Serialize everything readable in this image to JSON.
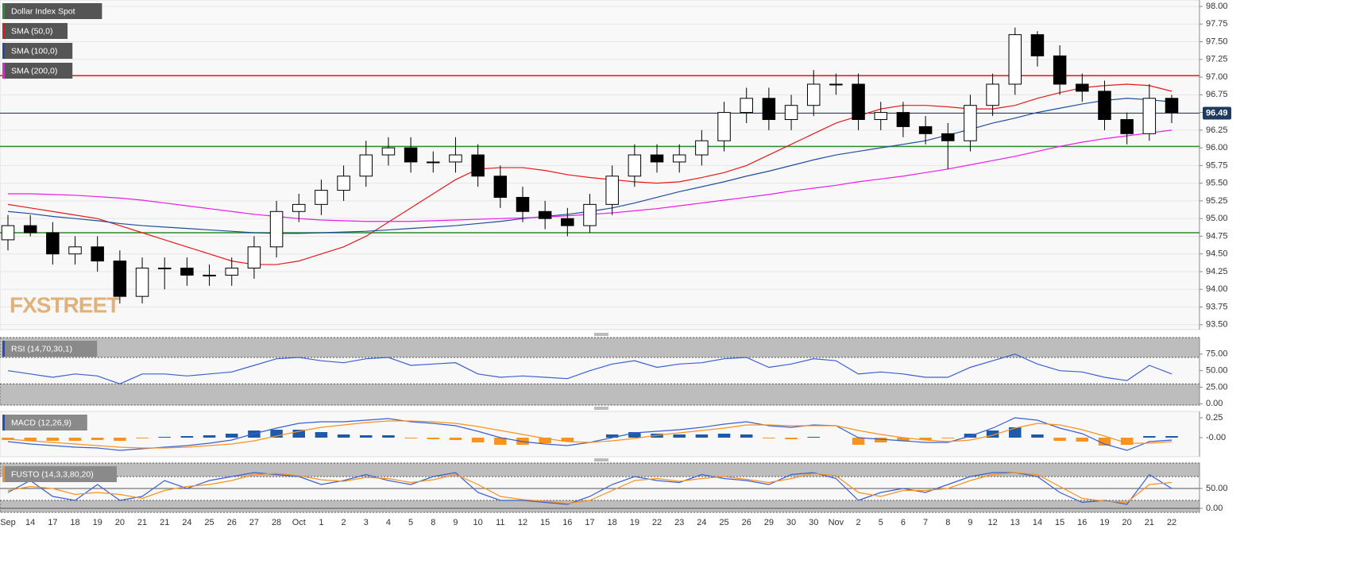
{
  "chart_data": [
    {
      "type": "candlestick",
      "legend": [
        "Dollar Index Spot",
        "SMA (50,0)",
        "SMA (100,0)",
        "SMA (200,0)"
      ],
      "legend_colors": [
        "#2e8b2e",
        "#e31a1c",
        "#1f4e9c",
        "#e81ce8"
      ],
      "watermark": "FXSTREET",
      "categories": [
        "Sep",
        "14",
        "17",
        "18",
        "19",
        "20",
        "21",
        "21",
        "24",
        "25",
        "26",
        "27",
        "28",
        "Oct",
        "1",
        "2",
        "3",
        "4",
        "5",
        "8",
        "9",
        "10",
        "11",
        "12",
        "15",
        "16",
        "17",
        "18",
        "19",
        "22",
        "23",
        "24",
        "25",
        "26",
        "29",
        "30",
        "30",
        "Nov",
        "2",
        "5",
        "6",
        "7",
        "8",
        "9",
        "12",
        "13",
        "14",
        "15",
        "16",
        "19",
        "20",
        "21",
        "22"
      ],
      "open": [
        94.7,
        94.9,
        94.8,
        94.5,
        94.6,
        94.4,
        93.9,
        94.3,
        94.3,
        94.2,
        94.2,
        94.3,
        94.6,
        95.1,
        95.2,
        95.4,
        95.6,
        95.9,
        96.0,
        95.8,
        95.8,
        95.9,
        95.6,
        95.3,
        95.1,
        95.0,
        94.9,
        95.2,
        95.6,
        95.9,
        95.8,
        95.9,
        96.1,
        96.5,
        96.7,
        96.4,
        96.6,
        96.9,
        96.9,
        96.4,
        96.5,
        96.3,
        96.2,
        96.1,
        96.6,
        96.9,
        97.6,
        97.3,
        96.9,
        96.8,
        96.4,
        96.2,
        96.7
      ],
      "high": [
        95.05,
        95.05,
        94.95,
        94.75,
        94.75,
        94.55,
        94.45,
        94.45,
        94.45,
        94.35,
        94.45,
        94.75,
        95.25,
        95.35,
        95.55,
        95.75,
        96.1,
        96.15,
        96.15,
        95.95,
        96.15,
        96.05,
        95.75,
        95.45,
        95.25,
        95.15,
        95.35,
        95.75,
        96.05,
        96.05,
        96.05,
        96.25,
        96.65,
        96.85,
        96.85,
        96.75,
        97.1,
        97.05,
        97.05,
        96.65,
        96.65,
        96.45,
        96.35,
        96.75,
        97.05,
        97.7,
        97.65,
        97.45,
        97.05,
        96.95,
        96.5,
        96.9,
        96.75
      ],
      "low": [
        94.55,
        94.75,
        94.35,
        94.35,
        94.25,
        93.8,
        93.8,
        94.0,
        94.05,
        94.05,
        94.05,
        94.15,
        94.45,
        94.95,
        95.05,
        95.25,
        95.45,
        95.75,
        95.65,
        95.65,
        95.65,
        95.45,
        95.15,
        94.95,
        94.85,
        94.75,
        94.8,
        95.05,
        95.45,
        95.65,
        95.65,
        95.75,
        95.95,
        96.35,
        96.25,
        96.25,
        96.45,
        96.75,
        96.25,
        96.25,
        96.15,
        96.05,
        95.7,
        95.95,
        96.45,
        96.75,
        97.15,
        96.75,
        96.65,
        96.25,
        96.05,
        96.1,
        96.35
      ],
      "close": [
        94.9,
        94.8,
        94.5,
        94.6,
        94.4,
        93.9,
        94.3,
        94.3,
        94.2,
        94.2,
        94.3,
        94.6,
        95.1,
        95.2,
        95.4,
        95.6,
        95.9,
        96.0,
        95.8,
        95.8,
        95.9,
        95.6,
        95.3,
        95.1,
        95.0,
        94.9,
        95.2,
        95.6,
        95.9,
        95.8,
        95.9,
        96.1,
        96.5,
        96.7,
        96.4,
        96.6,
        96.9,
        96.9,
        96.4,
        96.5,
        96.3,
        96.2,
        96.1,
        96.6,
        96.9,
        97.6,
        97.3,
        96.9,
        96.8,
        96.4,
        96.2,
        96.7,
        96.5
      ],
      "series": [
        {
          "name": "SMA (50,0)",
          "color": "#e31a1c",
          "values": [
            95.2,
            95.15,
            95.1,
            95.05,
            95.0,
            94.9,
            94.8,
            94.7,
            94.6,
            94.5,
            94.4,
            94.35,
            94.35,
            94.4,
            94.5,
            94.6,
            94.75,
            94.95,
            95.15,
            95.35,
            95.55,
            95.7,
            95.72,
            95.72,
            95.68,
            95.62,
            95.58,
            95.55,
            95.52,
            95.5,
            95.52,
            95.58,
            95.65,
            95.75,
            95.9,
            96.05,
            96.2,
            96.35,
            96.45,
            96.55,
            96.6,
            96.6,
            96.58,
            96.55,
            96.55,
            96.6,
            96.7,
            96.78,
            96.85,
            96.88,
            96.9,
            96.88,
            96.8
          ]
        },
        {
          "name": "SMA (100,0)",
          "color": "#1f4e9c",
          "values": [
            95.1,
            95.07,
            95.03,
            95.0,
            94.97,
            94.93,
            94.9,
            94.88,
            94.86,
            94.84,
            94.82,
            94.8,
            94.79,
            94.79,
            94.8,
            94.81,
            94.82,
            94.84,
            94.86,
            94.88,
            94.9,
            94.93,
            94.96,
            95.0,
            95.03,
            95.06,
            95.1,
            95.15,
            95.22,
            95.3,
            95.38,
            95.45,
            95.52,
            95.6,
            95.67,
            95.75,
            95.83,
            95.9,
            95.95,
            96.0,
            96.05,
            96.1,
            96.18,
            96.26,
            96.35,
            96.42,
            96.5,
            96.56,
            96.62,
            96.67,
            96.7,
            96.68,
            96.65
          ]
        },
        {
          "name": "SMA (200,0)",
          "color": "#e81ce8",
          "values": [
            95.35,
            95.35,
            95.34,
            95.33,
            95.31,
            95.29,
            95.26,
            95.22,
            95.18,
            95.14,
            95.1,
            95.06,
            95.03,
            95.0,
            94.98,
            94.97,
            94.96,
            94.96,
            94.96,
            94.97,
            94.98,
            94.99,
            95.0,
            95.01,
            95.02,
            95.04,
            95.06,
            95.08,
            95.11,
            95.14,
            95.18,
            95.22,
            95.26,
            95.3,
            95.34,
            95.39,
            95.43,
            95.47,
            95.52,
            95.56,
            95.6,
            95.65,
            95.7,
            95.76,
            95.82,
            95.88,
            95.95,
            96.02,
            96.08,
            96.13,
            96.17,
            96.21,
            96.25
          ]
        }
      ],
      "levels": [
        {
          "value": 97.02,
          "color": "#e31a1c"
        },
        {
          "value": 96.02,
          "color": "#2e8b2e"
        },
        {
          "value": 94.8,
          "color": "#2e8b2e"
        }
      ],
      "last": 96.49,
      "last_color": "#1f3a5f",
      "ylim": [
        93.43,
        98.09
      ],
      "yticks": [
        {
          "value": 93.5,
          "label": "93.50"
        },
        {
          "value": 93.75,
          "label": "93.75"
        },
        {
          "value": 94,
          "label": "94.00"
        },
        {
          "value": 94.25,
          "label": "94.25"
        },
        {
          "value": 94.5,
          "label": "94.50"
        },
        {
          "value": 94.75,
          "label": "94.75"
        },
        {
          "value": 95,
          "label": "95.00"
        },
        {
          "value": 95.25,
          "label": "95.25"
        },
        {
          "value": 95.5,
          "label": "95.50"
        },
        {
          "value": 95.75,
          "label": "95.75"
        },
        {
          "value": 96,
          "label": "96.00"
        },
        {
          "value": 96.25,
          "label": "96.25"
        },
        {
          "value": 96.5,
          "label": "96.50"
        },
        {
          "value": 96.75,
          "label": "96.75"
        },
        {
          "value": 97,
          "label": "97.00"
        },
        {
          "value": 97.25,
          "label": "97.25"
        },
        {
          "value": 97.5,
          "label": "97.50"
        },
        {
          "value": 97.75,
          "label": "97.75"
        },
        {
          "value": 98,
          "label": "98.00"
        }
      ]
    },
    {
      "type": "line",
      "legend": [
        "RSI (14,70,30,1)"
      ],
      "legend_colors": [
        "#1f4ec8"
      ],
      "bands": [
        30,
        70
      ],
      "series": [
        {
          "color": "#3b5fd0",
          "values": [
            50,
            45,
            40,
            45,
            42,
            30,
            45,
            45,
            42,
            45,
            48,
            58,
            68,
            70,
            65,
            62,
            68,
            70,
            58,
            60,
            62,
            45,
            40,
            42,
            40,
            38,
            50,
            60,
            65,
            55,
            60,
            62,
            68,
            70,
            55,
            60,
            68,
            65,
            45,
            48,
            45,
            40,
            40,
            55,
            65,
            75,
            60,
            50,
            48,
            40,
            35,
            58,
            45
          ]
        }
      ],
      "ylim": [
        -2,
        100
      ],
      "yticks": [
        {
          "value": 0,
          "label": "0.00"
        },
        {
          "value": 25,
          "label": "25.00"
        },
        {
          "value": 50,
          "label": "50.00"
        },
        {
          "value": 75,
          "label": "75.00"
        }
      ]
    },
    {
      "type": "macd",
      "legend": [
        "MACD (12,26,9)"
      ],
      "legend_colors": [
        "#1f4ec8"
      ],
      "hist_colors": [
        "#1e5aa8",
        "#f7931e"
      ],
      "series": [
        {
          "color": "#3b5fd0",
          "values": [
            -0.05,
            -0.08,
            -0.1,
            -0.12,
            -0.13,
            -0.16,
            -0.14,
            -0.12,
            -0.1,
            -0.07,
            -0.03,
            0.05,
            0.12,
            0.18,
            0.2,
            0.2,
            0.22,
            0.24,
            0.2,
            0.18,
            0.15,
            0.08,
            0,
            -0.05,
            -0.08,
            -0.1,
            -0.06,
            0,
            0.06,
            0.08,
            0.1,
            0.13,
            0.17,
            0.2,
            0.15,
            0.13,
            0.16,
            0.15,
            0,
            -0.02,
            -0.04,
            -0.06,
            -0.06,
            0.02,
            0.12,
            0.25,
            0.22,
            0.12,
            0.05,
            -0.08,
            -0.16,
            -0.05,
            -0.03
          ]
        },
        {
          "color": "#f7931e",
          "values": [
            -0.02,
            -0.04,
            -0.06,
            -0.08,
            -0.1,
            -0.12,
            -0.13,
            -0.13,
            -0.12,
            -0.1,
            -0.08,
            -0.04,
            0.02,
            0.08,
            0.13,
            0.16,
            0.19,
            0.21,
            0.21,
            0.2,
            0.18,
            0.14,
            0.09,
            0.04,
            -0.01,
            -0.05,
            -0.06,
            -0.04,
            -0.01,
            0.03,
            0.06,
            0.09,
            0.12,
            0.16,
            0.16,
            0.15,
            0.15,
            0.15,
            0.09,
            0.04,
            0,
            -0.03,
            -0.05,
            -0.03,
            0.03,
            0.12,
            0.18,
            0.16,
            0.1,
            0.02,
            -0.07,
            -0.07,
            -0.05
          ]
        }
      ],
      "histogram": [
        -0.03,
        -0.04,
        -0.04,
        -0.04,
        -0.03,
        -0.04,
        -0.01,
        0.01,
        0.02,
        0.03,
        0.05,
        0.09,
        0.1,
        0.1,
        0.07,
        0.04,
        0.03,
        0.03,
        -0.01,
        -0.02,
        -0.03,
        -0.06,
        -0.09,
        -0.09,
        -0.07,
        -0.05,
        0,
        0.04,
        0.07,
        0.05,
        0.04,
        0.04,
        0.05,
        0.04,
        -0.01,
        -0.02,
        0.01,
        0,
        -0.09,
        -0.06,
        -0.04,
        -0.03,
        -0.01,
        0.05,
        0.09,
        0.13,
        0.04,
        -0.04,
        -0.05,
        -0.1,
        -0.09,
        0.02,
        0.02
      ],
      "ylim": [
        -0.24,
        0.33
      ],
      "yticks": [
        {
          "value": 0,
          "label": "-0.00"
        },
        {
          "value": 0.25,
          "label": "0.25"
        }
      ]
    },
    {
      "type": "line",
      "legend": [
        "FUSTO (14,3,3,80,20)"
      ],
      "legend_colors": [
        "#f7931e"
      ],
      "bands": [
        20,
        80
      ],
      "series": [
        {
          "color": "#3b5fd0",
          "values": [
            40,
            70,
            30,
            20,
            60,
            20,
            30,
            70,
            50,
            70,
            80,
            90,
            85,
            80,
            60,
            70,
            85,
            70,
            60,
            80,
            90,
            40,
            20,
            20,
            15,
            10,
            30,
            60,
            80,
            70,
            65,
            85,
            75,
            70,
            60,
            85,
            90,
            75,
            20,
            40,
            50,
            40,
            60,
            80,
            90,
            90,
            80,
            40,
            15,
            20,
            10,
            85,
            50
          ]
        },
        {
          "color": "#f7931e",
          "values": [
            45,
            55,
            50,
            35,
            40,
            35,
            25,
            45,
            55,
            60,
            70,
            85,
            88,
            82,
            72,
            68,
            78,
            75,
            65,
            72,
            85,
            60,
            30,
            22,
            18,
            12,
            20,
            45,
            70,
            75,
            68,
            75,
            80,
            73,
            65,
            75,
            88,
            82,
            40,
            30,
            45,
            45,
            50,
            70,
            85,
            90,
            85,
            55,
            25,
            18,
            15,
            60,
            65
          ]
        }
      ],
      "ylim": [
        -10,
        114
      ],
      "yticks": [
        {
          "value": 0,
          "label": "0.00"
        },
        {
          "value": 50,
          "label": "50.00"
        }
      ]
    }
  ]
}
